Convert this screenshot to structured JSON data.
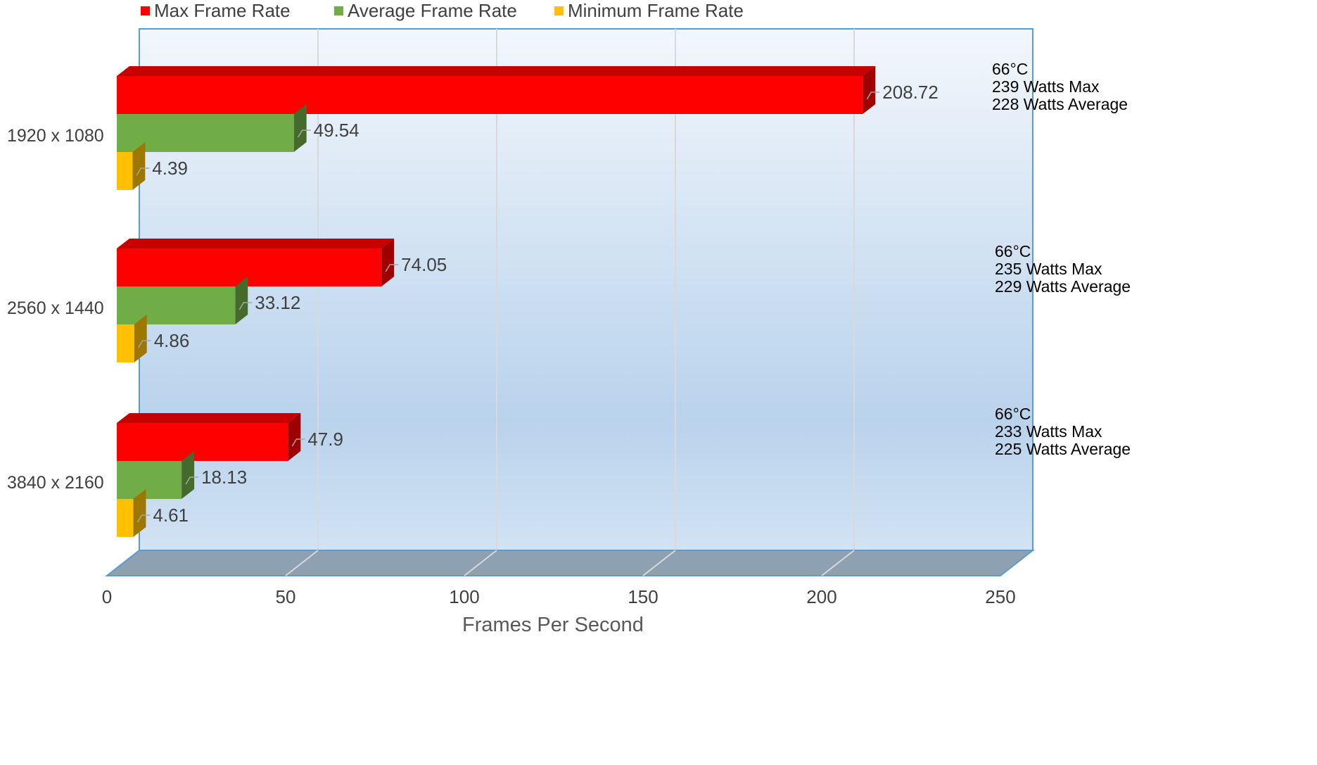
{
  "chart_data": {
    "type": "bar",
    "orientation": "horizontal",
    "three_d": true,
    "categories": [
      "1920 x 1080",
      "2560 x 1440",
      "3840 x 2160"
    ],
    "series": [
      {
        "name": "Max Frame Rate",
        "color": "#ff0000",
        "values": [
          208.72,
          74.05,
          47.9
        ]
      },
      {
        "name": "Average Frame Rate",
        "color": "#70ad47",
        "values": [
          49.54,
          33.12,
          18.13
        ]
      },
      {
        "name": "Minimum Frame Rate",
        "color": "#ffc000",
        "values": [
          4.39,
          4.86,
          4.61
        ]
      }
    ],
    "data_labels": [
      [
        "208.72",
        "49.54",
        "4.39"
      ],
      [
        "74.05",
        "33.12",
        "4.86"
      ],
      [
        "47.9",
        "18.13",
        "4.61"
      ]
    ],
    "xlabel": "Frames Per Second",
    "xlim": [
      0,
      250
    ],
    "xticks": [
      0,
      50,
      100,
      150,
      200,
      250
    ],
    "xtick_labels": [
      "0",
      "50",
      "100",
      "150",
      "200",
      "250"
    ],
    "grid": true,
    "legend_position": "top",
    "annotations": [
      {
        "lines": [
          "66°C",
          "239 Watts Max",
          "228 Watts Average"
        ]
      },
      {
        "lines": [
          "66°C",
          "235 Watts Max",
          "229 Watts Average"
        ]
      },
      {
        "lines": [
          "66°C",
          "233 Watts Max",
          "225 Watts Average"
        ]
      }
    ]
  }
}
